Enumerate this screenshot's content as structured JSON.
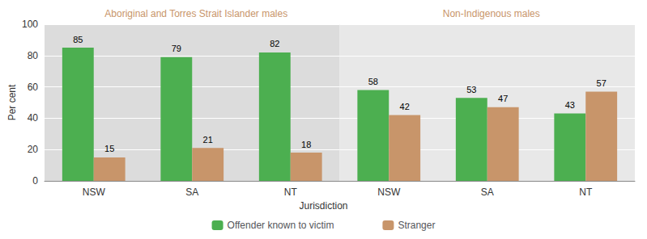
{
  "chart_data": {
    "type": "bar",
    "categories": [
      "NSW",
      "SA",
      "NT",
      "NSW",
      "SA",
      "NT"
    ],
    "series": [
      {
        "name": "Offender known to victim",
        "color": "#4caf50",
        "values": [
          85,
          79,
          82,
          58,
          53,
          43
        ]
      },
      {
        "name": "Stranger",
        "color": "#c8956a",
        "values": [
          15,
          21,
          18,
          42,
          47,
          57
        ]
      }
    ],
    "annotations": [
      {
        "text": "Aboriginal and Torres Strait Islander males",
        "color": "#c8956a",
        "background": "#dcdcdc"
      },
      {
        "text": "Non-Indigenous males",
        "color": "#c8956a",
        "background": "#e8e8e8"
      }
    ],
    "xlabel": "Jurisdiction",
    "ylabel": "Per cent",
    "ylim": [
      0,
      100
    ],
    "yticks": [
      0,
      20,
      40,
      60,
      80,
      100
    ],
    "grid": true,
    "legend": "bottom",
    "data_labels": true
  }
}
